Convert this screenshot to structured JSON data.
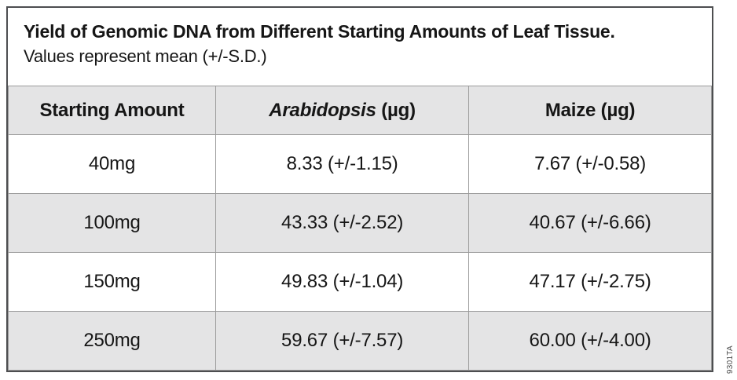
{
  "figure": {
    "title": "Yield of Genomic DNA from Different Starting Amounts of Leaf Tissue.",
    "subtitle": "Values represent mean (+/-S.D.)",
    "code": "9301TA"
  },
  "table": {
    "header": {
      "starting_amount": "Starting Amount",
      "arabidopsis_name": "Arabidopsis",
      "arabidopsis_unit": " (µg)",
      "maize": "Maize (µg)"
    },
    "rows": [
      {
        "cells": [
          "40mg",
          "8.33 (+/-1.15)",
          "7.67 (+/-0.58)"
        ]
      },
      {
        "cells": [
          "100mg",
          "43.33 (+/-2.52)",
          "40.67 (+/-6.66)"
        ]
      },
      {
        "cells": [
          "150mg",
          "49.83 (+/-1.04)",
          "47.17 (+/-2.75)"
        ]
      },
      {
        "cells": [
          "250mg",
          "59.67 (+/-7.57)",
          "60.00 (+/-4.00)"
        ]
      }
    ]
  },
  "colors": {
    "row_shade": "#e4e4e5",
    "cell_border": "#9b9b9b",
    "frame_border": "#4d4e50",
    "text": "#161616"
  }
}
